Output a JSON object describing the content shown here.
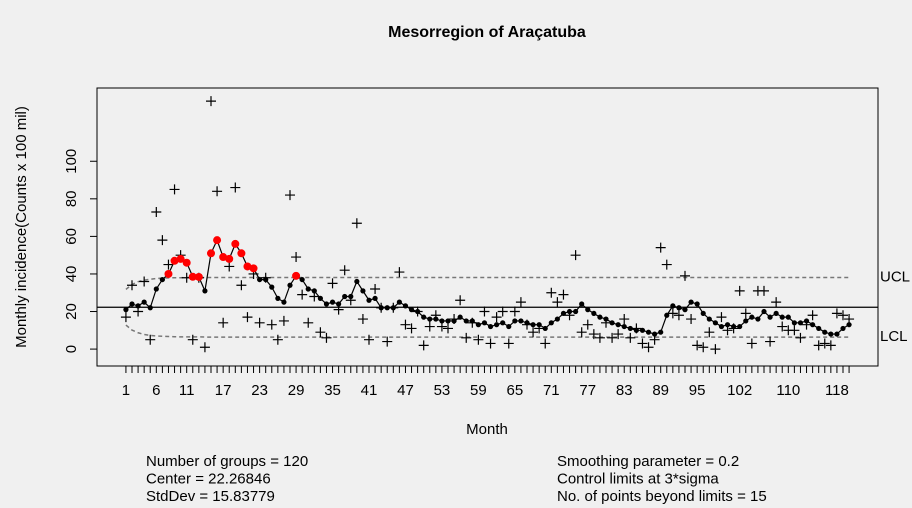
{
  "chart_data": {
    "type": "ewma",
    "title": "Mesorregion of Araçatuba",
    "x_label": "Month",
    "y_label": "Monthly incidence(Counts x 100 mil)",
    "categories": [
      "1",
      null,
      null,
      null,
      null,
      "6",
      null,
      null,
      null,
      null,
      "11",
      null,
      null,
      null,
      null,
      null,
      "17",
      null,
      null,
      null,
      null,
      null,
      "23",
      null,
      null,
      null,
      null,
      null,
      "29",
      null,
      null,
      null,
      null,
      null,
      "35",
      null,
      null,
      null,
      null,
      null,
      "41",
      null,
      null,
      null,
      null,
      null,
      "47",
      null,
      null,
      null,
      null,
      null,
      "53",
      null,
      null,
      null,
      null,
      null,
      "59",
      null,
      null,
      null,
      null,
      null,
      "65",
      null,
      null,
      null,
      null,
      null,
      "71",
      null,
      null,
      null,
      null,
      null,
      "77",
      null,
      null,
      null,
      null,
      null,
      "83",
      null,
      null,
      null,
      null,
      null,
      "89",
      null,
      null,
      null,
      null,
      null,
      "95",
      null,
      null,
      null,
      null,
      null,
      null,
      "102",
      null,
      null,
      null,
      null,
      null,
      null,
      null,
      "110",
      null,
      null,
      null,
      null,
      null,
      null,
      null,
      "118",
      null,
      null
    ],
    "raw": [
      17,
      34,
      20,
      36,
      5,
      73,
      58,
      45,
      85,
      50,
      38,
      5,
      38,
      1,
      132,
      84,
      14,
      44,
      86,
      34,
      17,
      40,
      14,
      38,
      13,
      5,
      15,
      82,
      49,
      29,
      14,
      28,
      9,
      6,
      35,
      21,
      42,
      26,
      67,
      16,
      5,
      32,
      22,
      4,
      22,
      41,
      13,
      11,
      20,
      2,
      12,
      18,
      12,
      11,
      16,
      26,
      6,
      14,
      5,
      20,
      3,
      17,
      20,
      3,
      20,
      25,
      13,
      9,
      11,
      3,
      30,
      25,
      29,
      18,
      50,
      9,
      13,
      8,
      6,
      14,
      6,
      8,
      16,
      6,
      11,
      3,
      1,
      5,
      54,
      45,
      19,
      18,
      39,
      16,
      2,
      1,
      9,
      0,
      17,
      10,
      11,
      31,
      19,
      3,
      31,
      31,
      4,
      25,
      12,
      10,
      10,
      6,
      13,
      18,
      2,
      3,
      2,
      19,
      18,
      16
    ],
    "ewma": [
      21,
      24,
      23,
      25,
      22,
      32,
      37,
      40,
      47,
      48,
      46,
      38.5,
      38.4,
      31,
      51,
      58,
      49,
      48,
      56,
      51,
      44,
      43,
      37,
      37,
      33,
      27,
      25,
      34,
      39,
      37,
      32,
      31,
      27,
      24,
      25,
      24,
      28,
      28,
      36,
      31,
      26,
      27,
      22,
      22,
      22,
      25,
      23,
      21,
      20,
      17,
      16,
      16,
      15,
      15,
      15,
      17,
      15,
      15,
      13,
      14,
      12,
      13,
      14,
      12,
      15,
      15,
      14,
      13,
      13,
      11,
      14,
      16,
      19,
      20,
      20,
      24,
      21,
      19,
      17,
      16,
      14,
      13,
      12,
      11,
      10,
      10,
      9,
      8,
      9,
      18,
      23,
      22,
      21,
      25,
      24,
      19,
      16,
      14,
      12,
      13,
      12,
      12,
      15,
      17,
      16,
      20,
      17,
      19,
      17,
      17,
      14,
      14,
      15,
      13,
      11,
      9,
      8,
      8,
      11,
      13
    ],
    "center": 22.26846,
    "limits_x": [
      1,
      2,
      3,
      4,
      5,
      6,
      7,
      8,
      9,
      10,
      11,
      12,
      13,
      14,
      120
    ],
    "ucl": [
      31.8,
      34.4,
      35.9,
      36.7,
      37.2,
      37.6,
      37.8,
      37.9,
      38,
      38,
      38.1,
      38.1,
      38.1,
      38.1,
      38.1
    ],
    "lcl": [
      12.8,
      10.1,
      8.7,
      7.8,
      7.3,
      7,
      6.8,
      6.7,
      6.6,
      6.5,
      6.5,
      6.5,
      6.5,
      6.4,
      6.4
    ],
    "ucl_label": "UCL",
    "lcl_label": "LCL",
    "xlim": [
      -3.76,
      124.76
    ],
    "ylim": [
      -9,
      139
    ],
    "yticks": [
      0,
      20,
      40,
      60,
      80,
      100
    ],
    "color": "#000000",
    "violation_color": "#ff0000",
    "limit_color": "#777777",
    "stats_left": [
      "Number of groups = 120",
      "Center = 22.26846",
      "StdDev = 15.83779"
    ],
    "stats_right": [
      "Smoothing parameter =  0.2",
      "Control limits at 3*sigma",
      "No. of points beyond limits = 15"
    ]
  }
}
